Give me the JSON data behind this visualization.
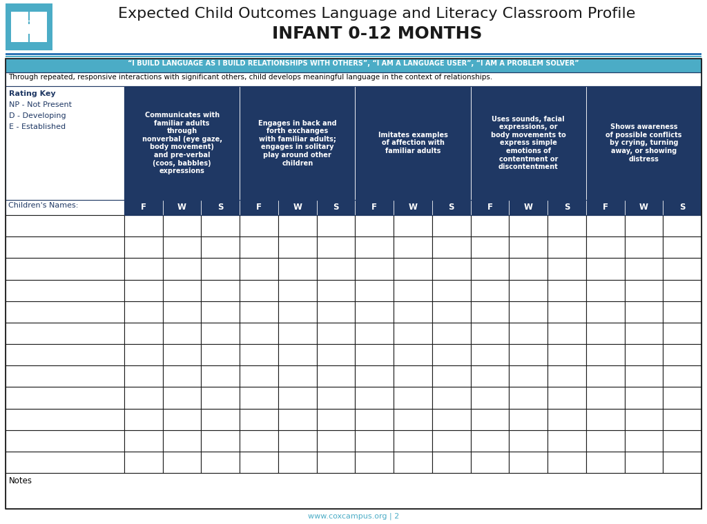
{
  "title_line1": "Expected Child Outcomes Language and Literacy Classroom Profile",
  "title_line2": "INFANT 0-12 MONTHS",
  "banner_text": "“I BUILD LANGUAGE AS I BUILD RELATIONSHIPS WITH OTHERS”, “I AM A LANGUAGE USER”, “I AM A PROBLEM SOLVER”",
  "description_text": "Through repeated, responsive interactions with significant others, child develops meaningful language in the context of relationships.",
  "rating_key_lines": [
    "Rating Key",
    "NP - Not Present",
    "D - Developing",
    "E - Established"
  ],
  "column_headers": [
    "Communicates with\nfamiliar adults\nthrough\nnonverbal (eye gaze,\nbody movement)\nand pre-verbal\n(coos, babbles)\nexpressions",
    "Engages in back and\nforth exchanges\nwith familiar adults;\nengages in solitary\nplay around other\nchildren",
    "Imitates examples\nof affection with\nfamiliar adults",
    "Uses sounds, facial\nexpressions, or\nbody movements to\nexpress simple\nemotions of\ncontentment or\ndiscontentment",
    "Shows awareness\nof possible conflicts\nby crying, turning\naway, or showing\ndistress"
  ],
  "fws_labels": [
    "F",
    "W",
    "S"
  ],
  "children_names_label": "Children's Names:",
  "notes_label": "Notes",
  "footer_text": "www.coxcampus.org | 2",
  "num_data_rows": 12,
  "dark_blue": "#1f3864",
  "light_blue": "#2e75b6",
  "sky_blue": "#4bacc6",
  "border_color": "#1a1a1a",
  "col_border_color": "#1f3864",
  "header_text_color": "#ffffff",
  "title_color": "#1a1a1a",
  "rating_key_color": "#1f3864",
  "children_names_color": "#1f3864",
  "footer_color": "#4bacc6",
  "background_color": "#ffffff"
}
